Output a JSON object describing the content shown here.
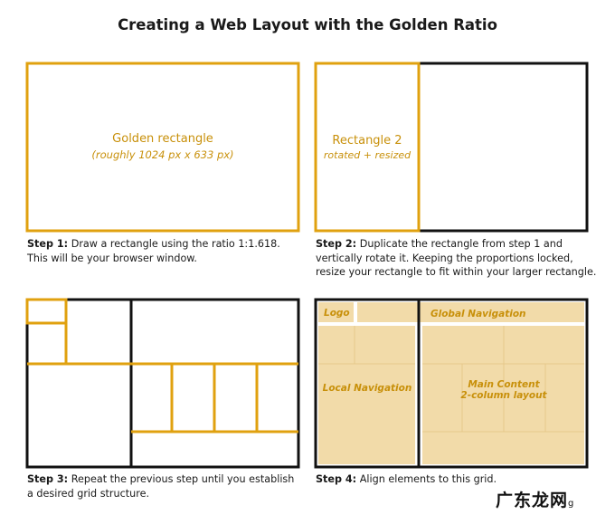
{
  "title": "Creating a Web Layout with the Golden Ratio",
  "panels": {
    "p1": {
      "label": "Golden rectangle",
      "sublabel": "(roughly 1024 px x 633 px)",
      "step": "Step 1:",
      "caption": "Draw a rectangle using the ratio 1:1.618. This will be your browser window."
    },
    "p2": {
      "label": "Rectangle 2",
      "sublabel": "rotated + resized",
      "step": "Step 2:",
      "caption": "Duplicate the rectangle from step 1 and vertically rotate it. Keeping the proportions locked, resize your rectangle to fit within your larger rectangle."
    },
    "p3": {
      "step": "Step 3:",
      "caption": "Repeat the previous step until you establish a desired grid structure."
    },
    "p4": {
      "logo": "Logo",
      "global_nav": "Global Navigation",
      "local_nav": "Local Navigation",
      "main_content_1": "Main Content",
      "main_content_2": "2-column layout",
      "step": "Step 4:",
      "caption": "Align elements to this grid."
    }
  },
  "watermark": "广东龙网",
  "watermark_suffix": "g",
  "colors": {
    "gold": "#e0a10f",
    "gold_text": "#c8900a",
    "fill": "#f2dba9",
    "black": "#111111"
  }
}
